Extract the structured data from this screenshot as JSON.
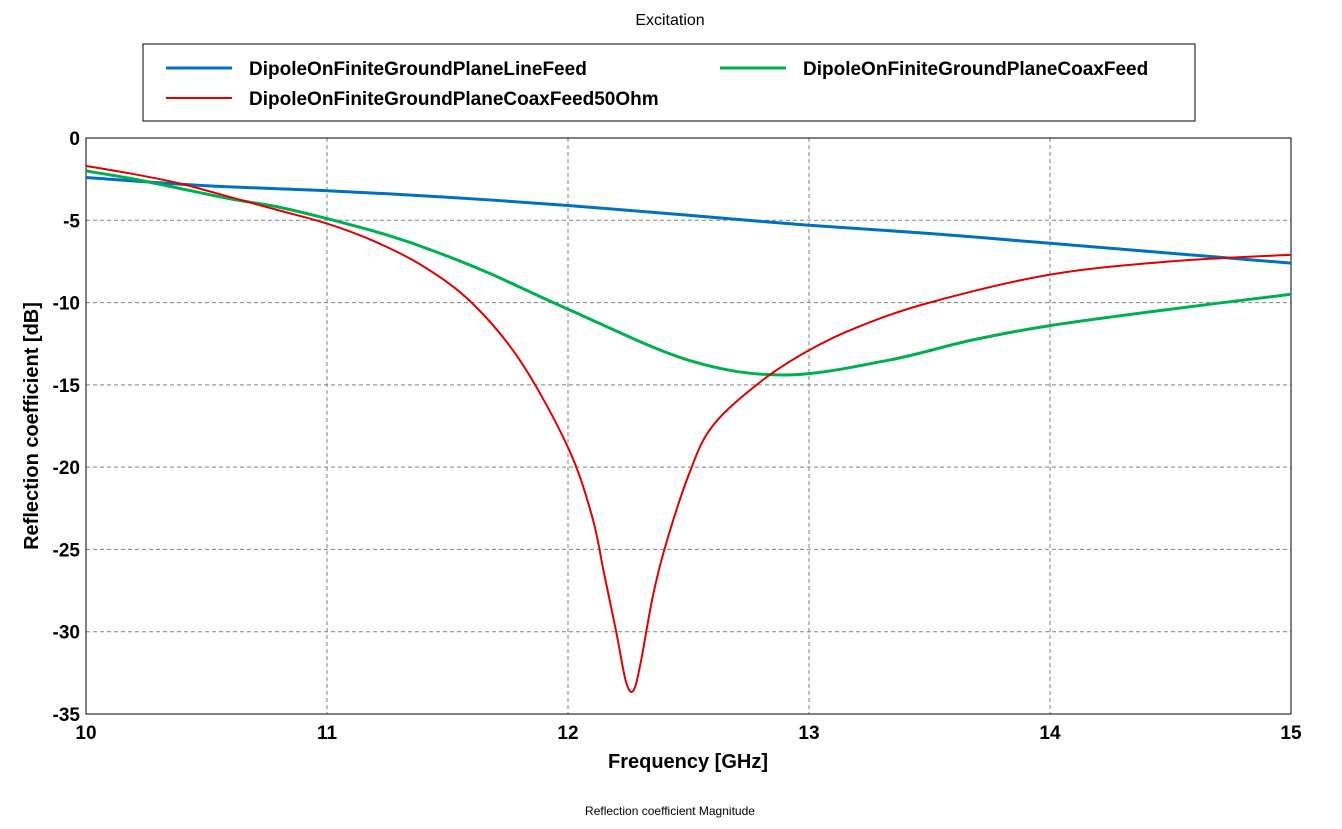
{
  "chart_data": {
    "type": "line",
    "title": "Excitation",
    "footer": "Reflection coefficient Magnitude",
    "xlabel": "Frequency [GHz]",
    "ylabel": "Reflection coefficient [dB]",
    "xlim": [
      10,
      15
    ],
    "ylim": [
      -35,
      0
    ],
    "xticks": [
      10,
      11,
      12,
      13,
      14,
      15
    ],
    "yticks": [
      0,
      -5,
      -10,
      -15,
      -20,
      -25,
      -30,
      -35
    ],
    "grid": true,
    "legend_position": "top",
    "series": [
      {
        "name": "DipoleOnFiniteGroundPlaneLineFeed",
        "color": "#0070c0",
        "x": [
          10,
          10.5,
          11,
          11.5,
          12,
          12.5,
          13,
          13.5,
          14,
          14.5,
          15
        ],
        "y": [
          -2.4,
          -2.9,
          -3.2,
          -3.6,
          -4.1,
          -4.7,
          -5.3,
          -5.8,
          -6.4,
          -7.0,
          -7.6
        ]
      },
      {
        "name": "DipoleOnFiniteGroundPlaneCoaxFeed",
        "color": "#00b050",
        "x": [
          10,
          10.2,
          10.4,
          10.6,
          10.8,
          11,
          11.25,
          11.45,
          11.67,
          12,
          12.5,
          12.9,
          13.33,
          13.67,
          14,
          14.5,
          15
        ],
        "y": [
          -2.0,
          -2.5,
          -3.1,
          -3.7,
          -4.2,
          -4.9,
          -5.9,
          -6.9,
          -8.2,
          -10.4,
          -13.5,
          -14.4,
          -13.5,
          -12.3,
          -11.4,
          -10.4,
          -9.5
        ]
      },
      {
        "name": "DipoleOnFiniteGroundPlaneCoaxFeed50Ohm",
        "color": "#e00000",
        "x": [
          10,
          10.2,
          10.4,
          10.6,
          10.8,
          11,
          11.2,
          11.4,
          11.6,
          11.8,
          12,
          12.1,
          12.15,
          12.2,
          12.24,
          12.27,
          12.3,
          12.35,
          12.4,
          12.5,
          12.6,
          12.8,
          13,
          13.2,
          13.5,
          14,
          14.5,
          15
        ],
        "y": [
          -1.7,
          -2.2,
          -2.8,
          -3.6,
          -4.4,
          -5.2,
          -6.3,
          -7.8,
          -10.0,
          -13.5,
          -18.8,
          -23.0,
          -26.5,
          -30.0,
          -33.0,
          -33.6,
          -32.0,
          -28.0,
          -25.0,
          -20.5,
          -17.5,
          -14.8,
          -12.9,
          -11.5,
          -10.0,
          -8.3,
          -7.5,
          -7.1
        ]
      }
    ]
  }
}
